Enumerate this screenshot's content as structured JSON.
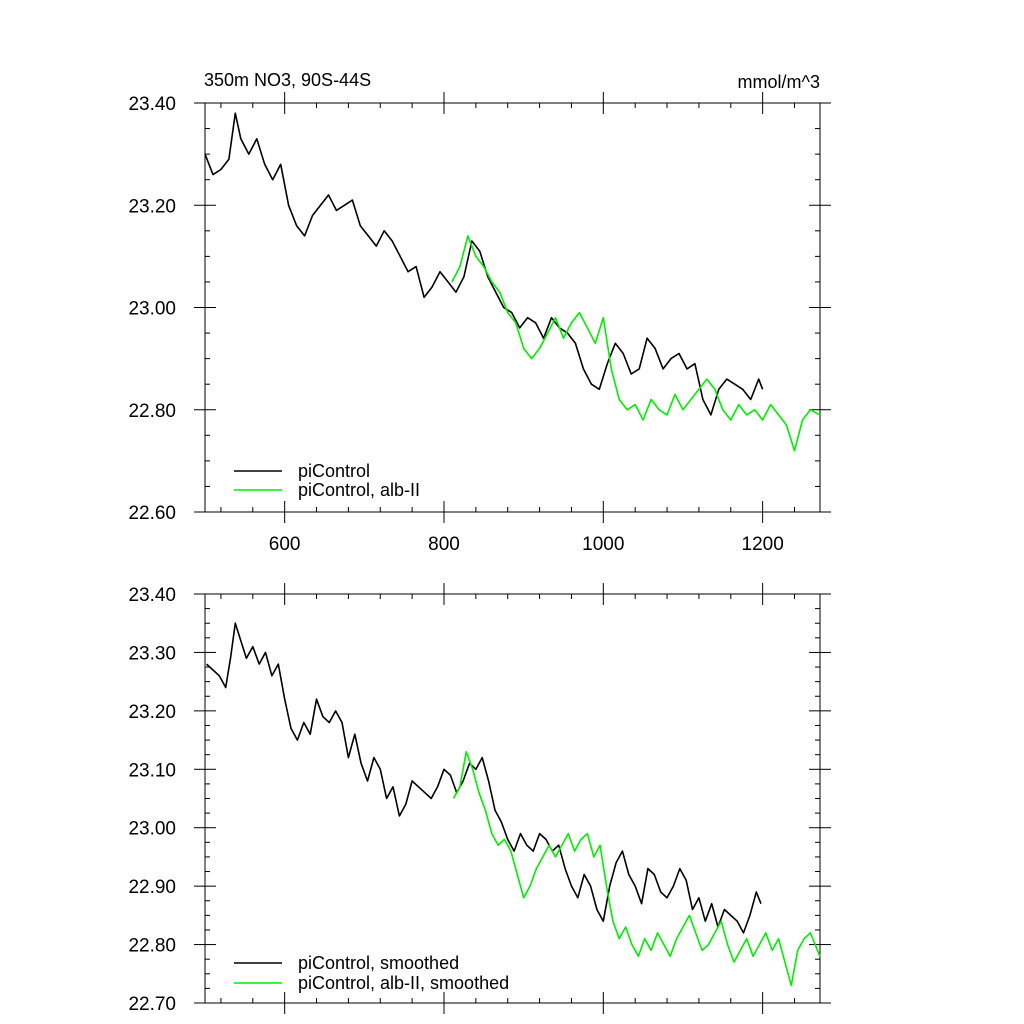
{
  "colors": {
    "control": "#000000",
    "alb": "#00ee00"
  },
  "chart_data": [
    {
      "type": "line",
      "title": "350m NO3, 90S-44S",
      "units": "mmol/m^3",
      "xlabel": "",
      "ylabel": "",
      "xlim": [
        500,
        1272
      ],
      "ylim": [
        22.6,
        23.4
      ],
      "xticks": [
        600,
        800,
        1000,
        1200
      ],
      "xtick_labels": [
        "600",
        "800",
        "1000",
        "1200"
      ],
      "yticks": [
        22.6,
        22.8,
        23.0,
        23.2,
        23.4
      ],
      "ytick_labels": [
        "22.60",
        "22.80",
        "23.00",
        "23.20",
        "23.40"
      ],
      "legend_position": "bottom-left",
      "series": [
        {
          "name": "piControl",
          "color_key": "control",
          "x": [
            500,
            510,
            520,
            530,
            538,
            545,
            555,
            565,
            575,
            585,
            595,
            605,
            615,
            625,
            635,
            645,
            655,
            665,
            675,
            685,
            695,
            705,
            715,
            725,
            735,
            745,
            755,
            765,
            775,
            785,
            795,
            805,
            815,
            825,
            835,
            845,
            855,
            865,
            875,
            885,
            895,
            905,
            915,
            925,
            935,
            945,
            955,
            965,
            975,
            985,
            995,
            1005,
            1015,
            1025,
            1035,
            1045,
            1055,
            1065,
            1075,
            1085,
            1095,
            1105,
            1115,
            1125,
            1135,
            1145,
            1155,
            1165,
            1175,
            1185,
            1195,
            1200
          ],
          "y": [
            23.3,
            23.26,
            23.27,
            23.29,
            23.38,
            23.33,
            23.3,
            23.33,
            23.28,
            23.25,
            23.28,
            23.2,
            23.16,
            23.14,
            23.18,
            23.2,
            23.22,
            23.19,
            23.2,
            23.21,
            23.16,
            23.14,
            23.12,
            23.15,
            23.13,
            23.1,
            23.07,
            23.08,
            23.02,
            23.04,
            23.07,
            23.05,
            23.03,
            23.06,
            23.13,
            23.11,
            23.06,
            23.03,
            23.0,
            22.99,
            22.96,
            22.98,
            22.97,
            22.94,
            22.98,
            22.96,
            22.95,
            22.93,
            22.88,
            22.85,
            22.84,
            22.89,
            22.93,
            22.91,
            22.87,
            22.88,
            22.94,
            22.92,
            22.88,
            22.9,
            22.91,
            22.88,
            22.89,
            22.82,
            22.79,
            22.84,
            22.86,
            22.85,
            22.84,
            22.82,
            22.86,
            22.84
          ]
        },
        {
          "name": "piControl, alb-II",
          "color_key": "alb",
          "x": [
            810,
            820,
            830,
            840,
            850,
            860,
            870,
            880,
            890,
            900,
            910,
            920,
            930,
            940,
            950,
            960,
            970,
            980,
            990,
            1000,
            1010,
            1020,
            1030,
            1040,
            1050,
            1060,
            1070,
            1080,
            1090,
            1100,
            1110,
            1120,
            1130,
            1140,
            1150,
            1160,
            1170,
            1180,
            1190,
            1200,
            1210,
            1220,
            1230,
            1240,
            1250,
            1260,
            1272
          ],
          "y": [
            23.05,
            23.08,
            23.14,
            23.1,
            23.08,
            23.05,
            23.03,
            22.99,
            22.97,
            22.92,
            22.9,
            22.92,
            22.95,
            22.98,
            22.94,
            22.97,
            22.99,
            22.96,
            22.93,
            22.98,
            22.88,
            22.82,
            22.8,
            22.81,
            22.78,
            22.82,
            22.8,
            22.79,
            22.83,
            22.8,
            22.82,
            22.84,
            22.86,
            22.84,
            22.8,
            22.78,
            22.81,
            22.79,
            22.8,
            22.78,
            22.81,
            22.79,
            22.77,
            22.72,
            22.78,
            22.8,
            22.79
          ]
        }
      ]
    },
    {
      "type": "line",
      "xlim": [
        500,
        1272
      ],
      "ylim": [
        22.7,
        23.4
      ],
      "xticks": [
        600,
        800,
        1000,
        1200
      ],
      "yticks": [
        22.7,
        22.8,
        22.9,
        23.0,
        23.1,
        23.2,
        23.3,
        23.4
      ],
      "ytick_labels": [
        "22.70",
        "22.80",
        "22.90",
        "23.00",
        "23.10",
        "23.20",
        "23.30",
        "23.40"
      ],
      "legend_position": "bottom-left",
      "series": [
        {
          "name": "piControl, smoothed",
          "color_key": "control",
          "x": [
            502,
            510,
            518,
            526,
            532,
            538,
            545,
            552,
            560,
            568,
            576,
            584,
            592,
            600,
            608,
            616,
            624,
            632,
            640,
            648,
            656,
            664,
            672,
            680,
            688,
            696,
            704,
            712,
            720,
            728,
            736,
            744,
            752,
            760,
            768,
            776,
            784,
            792,
            800,
            808,
            816,
            824,
            832,
            840,
            848,
            856,
            864,
            872,
            880,
            888,
            896,
            904,
            912,
            920,
            928,
            936,
            944,
            952,
            960,
            968,
            976,
            984,
            992,
            1000,
            1008,
            1016,
            1024,
            1032,
            1040,
            1048,
            1056,
            1064,
            1072,
            1080,
            1088,
            1096,
            1104,
            1112,
            1120,
            1128,
            1136,
            1144,
            1152,
            1160,
            1168,
            1176,
            1184,
            1192,
            1198
          ],
          "y": [
            23.28,
            23.27,
            23.26,
            23.24,
            23.29,
            23.35,
            23.32,
            23.29,
            23.31,
            23.28,
            23.3,
            23.26,
            23.28,
            23.22,
            23.17,
            23.15,
            23.18,
            23.16,
            23.22,
            23.19,
            23.18,
            23.2,
            23.18,
            23.12,
            23.16,
            23.11,
            23.08,
            23.12,
            23.1,
            23.05,
            23.07,
            23.02,
            23.04,
            23.08,
            23.07,
            23.06,
            23.05,
            23.07,
            23.1,
            23.09,
            23.06,
            23.08,
            23.11,
            23.1,
            23.12,
            23.08,
            23.03,
            23.01,
            22.98,
            22.96,
            22.99,
            22.97,
            22.96,
            22.99,
            22.98,
            22.96,
            22.97,
            22.93,
            22.9,
            22.88,
            22.92,
            22.9,
            22.86,
            22.84,
            22.9,
            22.94,
            22.96,
            22.92,
            22.9,
            22.87,
            22.93,
            22.92,
            22.89,
            22.88,
            22.9,
            22.93,
            22.91,
            22.86,
            22.88,
            22.84,
            22.87,
            22.83,
            22.86,
            22.85,
            22.84,
            22.82,
            22.85,
            22.89,
            22.87
          ]
        },
        {
          "name": "piControl, alb-II, smoothed",
          "color_key": "alb",
          "x": [
            812,
            820,
            828,
            836,
            844,
            852,
            860,
            868,
            876,
            884,
            892,
            900,
            908,
            916,
            924,
            932,
            940,
            948,
            956,
            964,
            972,
            980,
            988,
            996,
            1004,
            1012,
            1020,
            1028,
            1036,
            1044,
            1052,
            1060,
            1068,
            1076,
            1084,
            1092,
            1100,
            1108,
            1116,
            1124,
            1132,
            1140,
            1148,
            1156,
            1164,
            1172,
            1180,
            1188,
            1196,
            1204,
            1212,
            1220,
            1228,
            1236,
            1244,
            1252,
            1260,
            1272
          ],
          "y": [
            23.05,
            23.07,
            23.13,
            23.1,
            23.06,
            23.03,
            22.99,
            22.97,
            22.98,
            22.96,
            22.92,
            22.88,
            22.9,
            22.93,
            22.95,
            22.97,
            22.95,
            22.97,
            22.99,
            22.96,
            22.98,
            22.99,
            22.95,
            22.97,
            22.9,
            22.84,
            22.81,
            22.83,
            22.8,
            22.78,
            22.81,
            22.79,
            22.82,
            22.8,
            22.78,
            22.81,
            22.83,
            22.85,
            22.82,
            22.79,
            22.8,
            22.82,
            22.84,
            22.8,
            22.77,
            22.79,
            22.81,
            22.78,
            22.8,
            22.82,
            22.79,
            22.81,
            22.77,
            22.73,
            22.79,
            22.81,
            22.82,
            22.78
          ]
        }
      ]
    }
  ]
}
